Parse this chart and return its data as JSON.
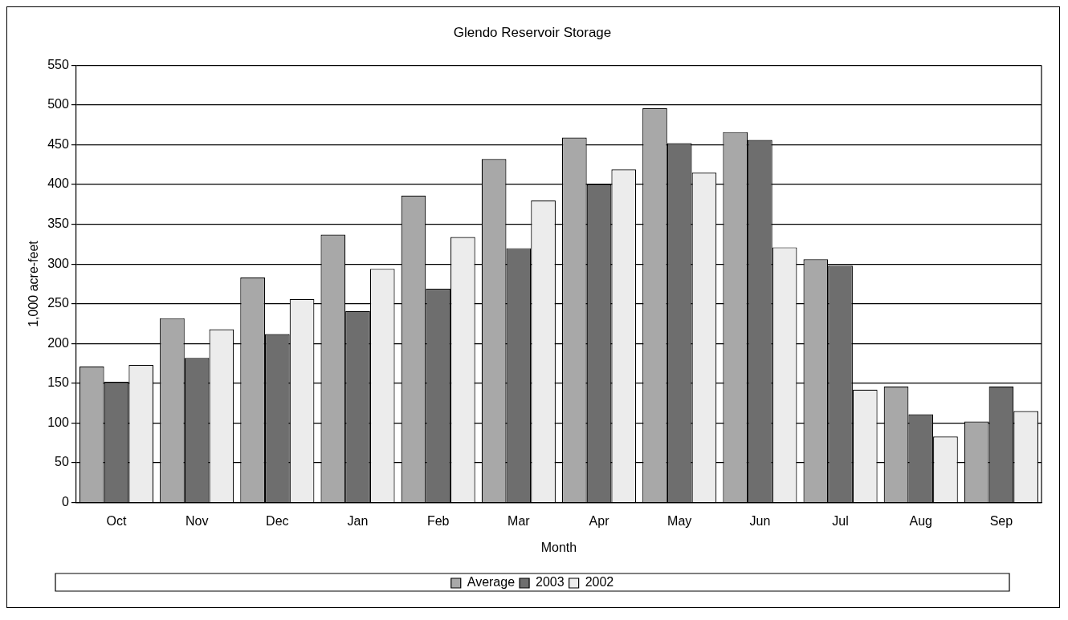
{
  "chart_data": {
    "type": "bar",
    "title": "Glendo Reservoir Storage",
    "xlabel": "Month",
    "ylabel": "1,000 acre-feet",
    "categories": [
      "Oct",
      "Nov",
      "Dec",
      "Jan",
      "Feb",
      "Mar",
      "Apr",
      "May",
      "Jun",
      "Jul",
      "Aug",
      "Sep"
    ],
    "series": [
      {
        "name": "Average",
        "color": "#a8a8a8",
        "values": [
          171,
          232,
          283,
          337,
          386,
          432,
          459,
          496,
          466,
          306,
          146,
          102
        ]
      },
      {
        "name": "2003",
        "color": "#6e6e6e",
        "values": [
          152,
          182,
          212,
          241,
          269,
          320,
          400,
          452,
          456,
          298,
          111,
          146
        ]
      },
      {
        "name": "2002",
        "color": "#ececec",
        "values": [
          173,
          218,
          256,
          294,
          334,
          380,
          419,
          415,
          321,
          142,
          83,
          115
        ]
      }
    ],
    "ylim": [
      0,
      550
    ],
    "yticks": [
      0,
      50,
      100,
      150,
      200,
      250,
      300,
      350,
      400,
      450,
      500,
      550
    ],
    "grid": "y",
    "legend": "bottom"
  }
}
